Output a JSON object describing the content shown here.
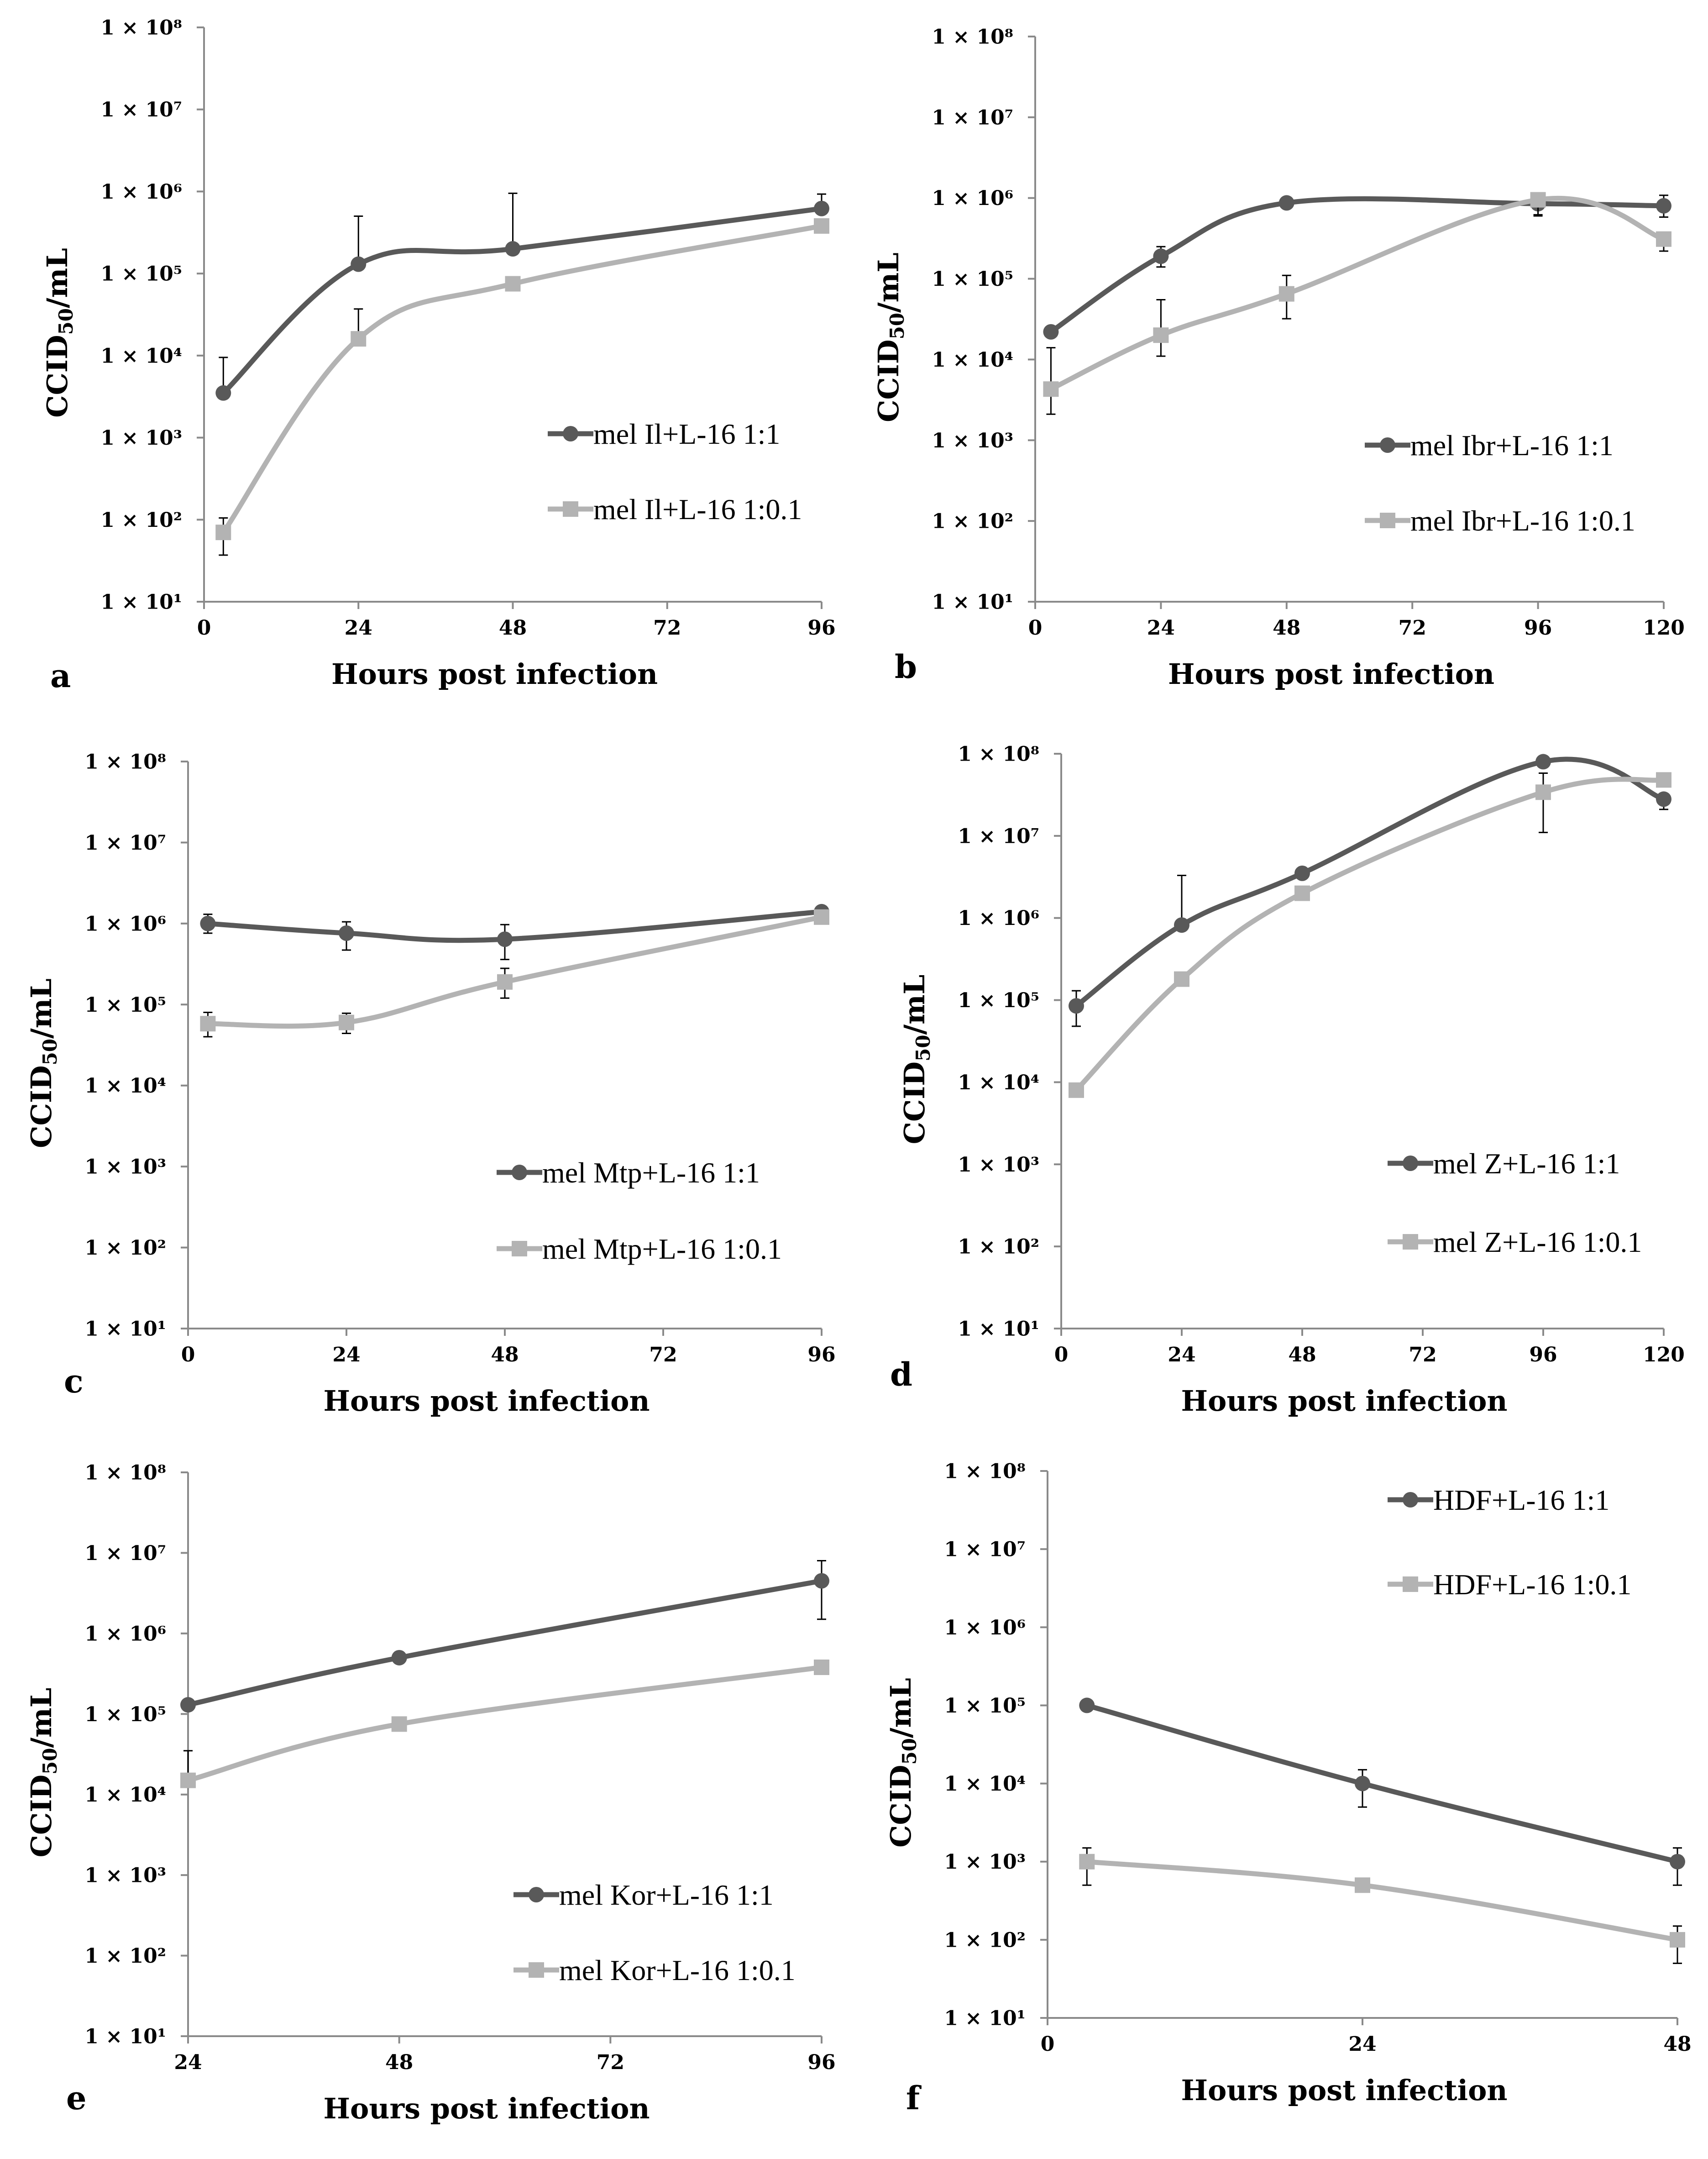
{
  "figure": {
    "colors": {
      "dark": "#595959",
      "light": "#b3b3b3"
    }
  },
  "chart_data": [
    {
      "panel": "a",
      "type": "line",
      "xlabel": "Hours post infection",
      "ylabel": "CCID50/mL",
      "ytick_labels": [
        "1 × 10¹",
        "1 × 10²",
        "1 × 10³",
        "1 × 10⁴",
        "1 × 10⁵",
        "1 × 10⁶",
        "1 × 10⁷",
        "1 × 10⁸"
      ],
      "yscale": "log",
      "ylim": [
        10,
        100000000
      ],
      "xlim": [
        0,
        96
      ],
      "xticks": [
        0,
        24,
        48,
        72,
        96
      ],
      "legend_position": "bottom-right",
      "series": [
        {
          "name": "mel Il+L-16 1:1",
          "marker": "circle",
          "color": "#595959",
          "x": [
            3,
            24,
            48,
            96
          ],
          "y": [
            3500,
            130000,
            200000,
            620000
          ],
          "err_up": [
            9500,
            500000,
            950000,
            930000
          ],
          "err_down": [
            null,
            null,
            null,
            null
          ]
        },
        {
          "name": "mel Il+L-16 1:0.1",
          "marker": "square",
          "color": "#b3b3b3",
          "x": [
            3,
            24,
            48,
            96
          ],
          "y": [
            70,
            16000,
            75000,
            380000
          ],
          "err_up": [
            105,
            37000,
            null,
            null
          ],
          "err_down": [
            37,
            null,
            null,
            null
          ]
        }
      ]
    },
    {
      "panel": "b",
      "type": "line",
      "xlabel": "Hours post infection",
      "ylabel": "CCID50/mL",
      "ytick_labels": [
        "1 × 10¹",
        "1 × 10²",
        "1 × 10³",
        "1 × 10⁴",
        "1 × 10⁵",
        "1 × 10⁶",
        "1 × 10⁷",
        "1 × 10⁸"
      ],
      "yscale": "log",
      "ylim": [
        10,
        100000000
      ],
      "xlim": [
        0,
        120
      ],
      "xticks": [
        0,
        24,
        48,
        72,
        96,
        120
      ],
      "legend_position": "bottom-right",
      "series": [
        {
          "name": "mel Ibr+L-16 1:1",
          "marker": "circle",
          "color": "#595959",
          "x": [
            3,
            24,
            48,
            96,
            120
          ],
          "y": [
            22000,
            190000,
            870000,
            850000,
            800000
          ],
          "err_up": [
            null,
            250000,
            null,
            null,
            1080000
          ],
          "err_down": [
            null,
            140000,
            null,
            600000,
            580000
          ]
        },
        {
          "name": "mel Ibr+L-16 1:0.1",
          "marker": "square",
          "color": "#b3b3b3",
          "x": [
            3,
            24,
            48,
            96,
            120
          ],
          "y": [
            4300,
            20000,
            65000,
            950000,
            310000
          ],
          "err_up": [
            14000,
            55000,
            110000,
            null,
            null
          ],
          "err_down": [
            2100,
            11000,
            32000,
            620000,
            220000
          ]
        }
      ]
    },
    {
      "panel": "c",
      "type": "line",
      "xlabel": "Hours post infection",
      "ylabel": "CCID50/mL",
      "ytick_labels": [
        "1 × 10¹",
        "1 × 10²",
        "1 × 10³",
        "1 × 10⁴",
        "1 × 10⁵",
        "1 × 10⁶",
        "1 × 10⁷",
        "1 × 10⁸"
      ],
      "yscale": "log",
      "ylim": [
        10,
        100000000
      ],
      "xlim": [
        0,
        96
      ],
      "xticks": [
        0,
        24,
        48,
        72,
        96
      ],
      "legend_position": "bottom-right",
      "series": [
        {
          "name": "mel Mtp+L-16 1:1",
          "marker": "circle",
          "color": "#595959",
          "x": [
            3,
            24,
            48,
            96
          ],
          "y": [
            1000000,
            760000,
            640000,
            1400000
          ],
          "err_up": [
            1300000,
            1050000,
            970000,
            null
          ],
          "err_down": [
            760000,
            470000,
            360000,
            null
          ]
        },
        {
          "name": "mel Mtp+L-16 1:0.1",
          "marker": "square",
          "color": "#b3b3b3",
          "x": [
            3,
            24,
            48,
            96
          ],
          "y": [
            58000,
            60000,
            190000,
            1200000
          ],
          "err_up": [
            80000,
            78000,
            280000,
            null
          ],
          "err_down": [
            40000,
            44000,
            120000,
            null
          ]
        }
      ]
    },
    {
      "panel": "d",
      "type": "line",
      "xlabel": "Hours post infection",
      "ylabel": "CCID50/mL",
      "ytick_labels": [
        "1 × 10¹",
        "1 × 10²",
        "1 × 10³",
        "1 × 10⁴",
        "1 × 10⁵",
        "1 × 10⁶",
        "1 × 10⁷",
        "1 × 10⁸"
      ],
      "yscale": "log",
      "ylim": [
        10,
        100000000
      ],
      "xlim": [
        0,
        120
      ],
      "xticks": [
        0,
        24,
        48,
        72,
        96,
        120
      ],
      "legend_position": "bottom-right",
      "series": [
        {
          "name": "mel Z+L-16 1:1",
          "marker": "circle",
          "color": "#595959",
          "x": [
            3,
            24,
            48,
            96,
            120
          ],
          "y": [
            85000,
            820000,
            3500000,
            80000000,
            28000000
          ],
          "err_up": [
            130000,
            3300000,
            null,
            null,
            null
          ],
          "err_down": [
            48000,
            null,
            null,
            null,
            21000000
          ]
        },
        {
          "name": "mel Z+L-16 1:0.1",
          "marker": "square",
          "color": "#b3b3b3",
          "x": [
            3,
            24,
            48,
            96,
            120
          ],
          "y": [
            8000,
            180000,
            2000000,
            34000000,
            48000000
          ],
          "err_up": [
            null,
            null,
            null,
            58000000,
            null
          ],
          "err_down": [
            null,
            null,
            null,
            11000000,
            null
          ]
        }
      ]
    },
    {
      "panel": "e",
      "type": "line",
      "xlabel": "Hours post infection",
      "ylabel": "CCID50/mL",
      "ytick_labels": [
        "1 × 10¹",
        "1 × 10²",
        "1 × 10³",
        "1 × 10⁴",
        "1 × 10⁵",
        "1 × 10⁶",
        "1 × 10⁷",
        "1 × 10⁸"
      ],
      "yscale": "log",
      "ylim": [
        10,
        100000000
      ],
      "xlim": [
        24,
        96
      ],
      "xticks": [
        24,
        48,
        72,
        96
      ],
      "legend_position": "bottom-right",
      "series": [
        {
          "name": "mel Kor+L-16 1:1",
          "marker": "circle",
          "color": "#595959",
          "x": [
            24,
            48,
            96
          ],
          "y": [
            130000,
            500000,
            4500000
          ],
          "err_up": [
            null,
            null,
            8000000
          ],
          "err_down": [
            null,
            null,
            1500000
          ]
        },
        {
          "name": "mel Kor+L-16 1:0.1",
          "marker": "square",
          "color": "#b3b3b3",
          "x": [
            24,
            48,
            96
          ],
          "y": [
            15000,
            75000,
            380000
          ],
          "err_up": [
            35000,
            null,
            null
          ],
          "err_down": [
            null,
            null,
            null
          ]
        }
      ]
    },
    {
      "panel": "f",
      "type": "line",
      "xlabel": "Hours post infection",
      "ylabel": "CCID50/mL",
      "ytick_labels": [
        "1 × 10¹",
        "1 × 10²",
        "1 × 10³",
        "1 × 10⁴",
        "1 × 10⁵",
        "1 × 10⁶",
        "1 × 10⁷",
        "1 × 10⁸"
      ],
      "yscale": "log",
      "ylim": [
        10,
        100000000
      ],
      "xlim": [
        0,
        48
      ],
      "xticks": [
        0,
        24,
        48
      ],
      "legend_position": "top-right",
      "series": [
        {
          "name": "HDF+L-16 1:1",
          "marker": "circle",
          "color": "#595959",
          "x": [
            3,
            24,
            48
          ],
          "y": [
            100000,
            10000,
            1000
          ],
          "err_up": [
            null,
            15000,
            1500
          ],
          "err_down": [
            null,
            5000,
            500
          ]
        },
        {
          "name": "HDF+L-16 1:0.1",
          "marker": "square",
          "color": "#b3b3b3",
          "x": [
            3,
            24,
            48
          ],
          "y": [
            1000,
            500,
            100
          ],
          "err_up": [
            1500,
            null,
            150
          ],
          "err_down": [
            500,
            null,
            50
          ]
        }
      ]
    }
  ]
}
